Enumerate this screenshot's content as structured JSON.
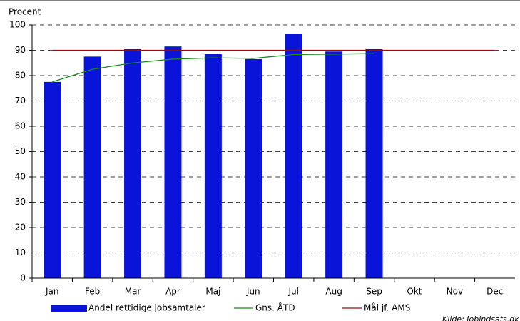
{
  "chart_data": {
    "type": "bar",
    "y_label": "Procent",
    "categories": [
      "Jan",
      "Feb",
      "Mar",
      "Apr",
      "Maj",
      "Jun",
      "Jul",
      "Aug",
      "Sep",
      "Okt",
      "Nov",
      "Dec"
    ],
    "series": [
      {
        "name": "Andel rettidige jobsamtaler",
        "type": "bar",
        "color": "#0a14d8",
        "values": [
          77.5,
          87.5,
          90.5,
          91.5,
          88.5,
          86.5,
          96.5,
          89.5,
          90.5,
          null,
          null,
          null
        ]
      },
      {
        "name": "Gns. ÅTD",
        "type": "line",
        "color": "#1a8a1a",
        "values": [
          77.5,
          82.5,
          85,
          86.5,
          87,
          86.8,
          88.3,
          88.5,
          88.7,
          null,
          null,
          null
        ]
      },
      {
        "name": "Mål jf. AMS",
        "type": "line",
        "color": "#8b1010",
        "values": [
          90,
          90,
          90,
          90,
          90,
          90,
          90,
          90,
          90,
          90,
          90,
          90
        ]
      }
    ],
    "ylim": [
      0,
      100
    ],
    "yticks": [
      0,
      10,
      20,
      30,
      40,
      50,
      60,
      70,
      80,
      90,
      100
    ],
    "grid": true,
    "source": "Kilde: Jobindsats.dk"
  }
}
